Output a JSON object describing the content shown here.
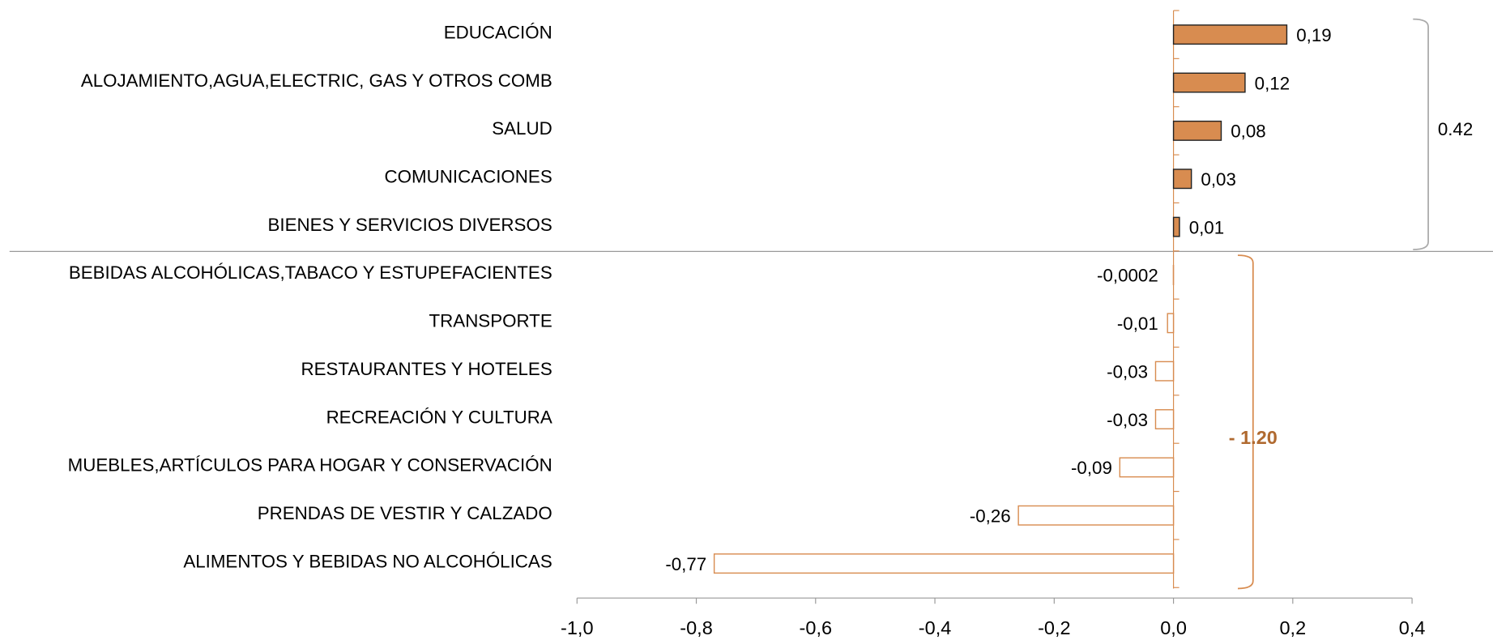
{
  "chart_data": {
    "type": "barh",
    "categories": [
      "EDUCACIÓN",
      "ALOJAMIENTO,AGUA,ELECTRIC, GAS Y OTROS COMB",
      "SALUD",
      "COMUNICACIONES",
      "BIENES Y SERVICIOS DIVERSOS",
      "BEBIDAS ALCOHÓLICAS,TABACO Y ESTUPEFACIENTES",
      "TRANSPORTE",
      "RESTAURANTES Y HOTELES",
      "RECREACIÓN Y CULTURA",
      "MUEBLES,ARTÍCULOS PARA HOGAR Y CONSERVACIÓN",
      "PRENDAS DE VESTIR Y CALZADO",
      "ALIMENTOS Y BEBIDAS NO ALCOHÓLICAS"
    ],
    "values": [
      0.19,
      0.12,
      0.08,
      0.03,
      0.01,
      -0.0002,
      -0.01,
      -0.03,
      -0.03,
      -0.09,
      -0.26,
      -0.77
    ],
    "value_labels": [
      "0,19",
      "0,12",
      "0,08",
      "0,03",
      "0,01",
      "-0,0002",
      "-0,01",
      "-0,03",
      "-0,03",
      "-0,09",
      "-0,26",
      "-0,77"
    ],
    "color": "#d88c50",
    "negative_fill": "#ffffff",
    "xlim": [
      -1.0,
      0.4
    ],
    "xticks": [
      {
        "value": -1.0,
        "label": "-1,0"
      },
      {
        "value": -0.8,
        "label": "-0,8"
      },
      {
        "value": -0.6,
        "label": "-0,6"
      },
      {
        "value": -0.4,
        "label": "-0,4"
      },
      {
        "value": -0.2,
        "label": "-0,2"
      },
      {
        "value": 0.0,
        "label": "0,0"
      },
      {
        "value": 0.2,
        "label": "0,2"
      },
      {
        "value": 0.4,
        "label": "0,4"
      }
    ],
    "annotations": [
      {
        "text": "0.42"
      },
      {
        "text": "- 1.20"
      }
    ]
  }
}
